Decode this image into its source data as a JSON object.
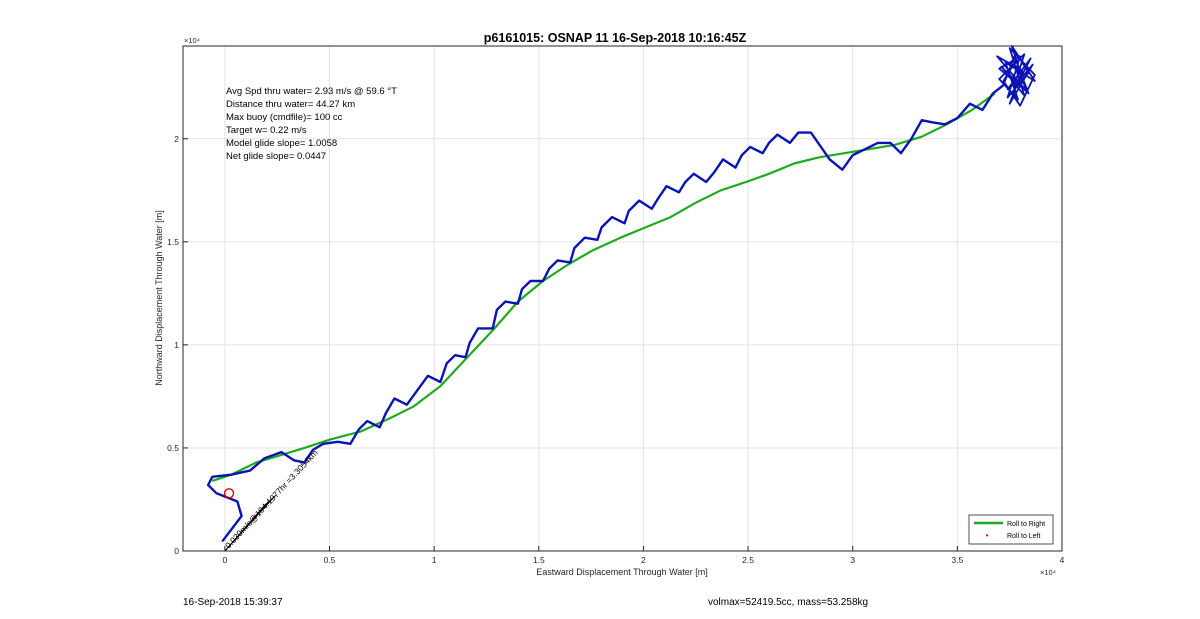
{
  "figure": {
    "footer_left": "16-Sep-2018 15:39:37",
    "footer_right": "volmax=52419.5cc, mass=53.258kg"
  },
  "chart_data": {
    "type": "line",
    "title": "p6161015: OSNAP 11 16-Sep-2018 10:16:45Z",
    "xlabel": "Eastward Displacement Through Water [m]",
    "ylabel": "Northward Displacement Through Water [m]",
    "xlim": [
      -2000,
      40000
    ],
    "ylim": [
      0,
      24500
    ],
    "x_ticks": [
      0,
      5000,
      10000,
      15000,
      20000,
      25000,
      30000,
      35000,
      40000
    ],
    "x_tick_labels": [
      "0",
      "0.5",
      "1",
      "1.5",
      "2",
      "2.5",
      "3",
      "3.5",
      "4"
    ],
    "y_ticks": [
      0,
      5000,
      10000,
      15000,
      20000
    ],
    "y_tick_labels": [
      "0",
      "0.5",
      "1",
      "1.5",
      "2"
    ],
    "x_exponent": "×10⁴",
    "y_exponent": "×10⁴",
    "grid": true,
    "legend_position": "bottom-right",
    "legend": [
      "Roll to Right",
      "Roll to Left"
    ],
    "annotations": [
      "Avg Spd thru water=  2.93 m/s @  59.6 °T",
      "Distance thru water= 44.27 km",
      "Max buoy (cmdfile)= 100 cc",
      "Target w= 0.22 m/s",
      "Model glide slope= 1.0058",
      "Net glide slope= 0.0447"
    ],
    "current_label": "0.030m/s@194.1977hr =3.3054km",
    "colors": {
      "roll_right": "#1faa1f",
      "track": "#0a14b4",
      "roll_left": "#dd0000",
      "marker": "#dd0000",
      "current": "#000000"
    },
    "series": [
      {
        "name": "Roll to Right",
        "x": [
          -600,
          300,
          900,
          1500,
          2500,
          3800,
          5000,
          6500,
          7800,
          9000,
          10300,
          11500,
          12800,
          14000,
          15200,
          16400,
          17600,
          18900,
          20100,
          21300,
          22500,
          23700,
          24900,
          26000,
          27200,
          28400,
          29600,
          30800,
          32000,
          33300,
          34500,
          35700,
          36800
        ],
        "y": [
          3400,
          3700,
          4000,
          4300,
          4600,
          5000,
          5400,
          5800,
          6400,
          7000,
          8000,
          9300,
          10700,
          12100,
          13100,
          13900,
          14600,
          15200,
          15700,
          16200,
          16900,
          17500,
          17900,
          18300,
          18800,
          19100,
          19300,
          19500,
          19700,
          20100,
          20700,
          21400,
          22200
        ]
      }
    ],
    "track": {
      "x": [
        -100,
        800,
        600,
        -400,
        -800,
        -600,
        300,
        1200,
        1900,
        2700,
        3300,
        3800,
        4200,
        4700,
        5400,
        6000,
        6400,
        6800,
        7400,
        7700,
        8100,
        8700,
        9200,
        9700,
        10300,
        10600,
        11000,
        11500,
        11700,
        12100,
        12800,
        13000,
        13400,
        14000,
        14200,
        14600,
        15200,
        15500,
        15900,
        16500,
        16700,
        17200,
        17800,
        18000,
        18500,
        19100,
        19300,
        19800,
        20400,
        20700,
        21100,
        21700,
        22000,
        22400,
        23000,
        23400,
        23800,
        24400,
        24700,
        25100,
        25700,
        26000,
        26400,
        27000,
        27400,
        28000,
        28900,
        29500,
        30000,
        30600,
        31200,
        31800,
        32300,
        32800,
        33300,
        33800,
        34400,
        35000,
        35600,
        36200,
        36700,
        37200
      ],
      "y": [
        500,
        1700,
        2400,
        2800,
        3200,
        3600,
        3700,
        3900,
        4500,
        4800,
        4400,
        4300,
        4900,
        5200,
        5300,
        5200,
        5900,
        6300,
        6000,
        6700,
        7400,
        7100,
        7800,
        8500,
        8200,
        9100,
        9500,
        9400,
        10100,
        10800,
        10800,
        11700,
        12100,
        12000,
        12700,
        13100,
        13100,
        13700,
        14100,
        14000,
        14700,
        15200,
        15100,
        15700,
        16200,
        15900,
        16500,
        17000,
        16600,
        17100,
        17700,
        17400,
        17900,
        18300,
        17900,
        18400,
        19000,
        18600,
        19200,
        19600,
        19300,
        19800,
        20200,
        19800,
        20300,
        20300,
        19000,
        18500,
        19200,
        19500,
        19800,
        19800,
        19300,
        20000,
        20900,
        20800,
        20700,
        21000,
        21700,
        21400,
        22200,
        22600
      ]
    },
    "tangle": {
      "x": [
        37200,
        37800,
        38400,
        37400,
        38000,
        37000,
        38300,
        37600,
        38700,
        37300,
        37900,
        37000,
        38200,
        37700,
        38600,
        37500,
        38100,
        36900,
        38400,
        37800,
        37200,
        38000,
        38700,
        37500,
        38200,
        37100,
        37900,
        38500,
        37400,
        38100
      ],
      "y": [
        22600,
        24200,
        23200,
        22000,
        24000,
        23400,
        22300,
        24500,
        22800,
        23700,
        21900,
        22900,
        24100,
        22500,
        23600,
        21700,
        23300,
        24000,
        22200,
        23800,
        22800,
        21600,
        23100,
        24400,
        22100,
        23500,
        22700,
        23900,
        22400,
        23000
      ]
    },
    "marker": {
      "x": 200,
      "y": 2800
    },
    "current_arrow": {
      "x": [
        0,
        2200
      ],
      "y": [
        0,
        2500
      ]
    }
  }
}
